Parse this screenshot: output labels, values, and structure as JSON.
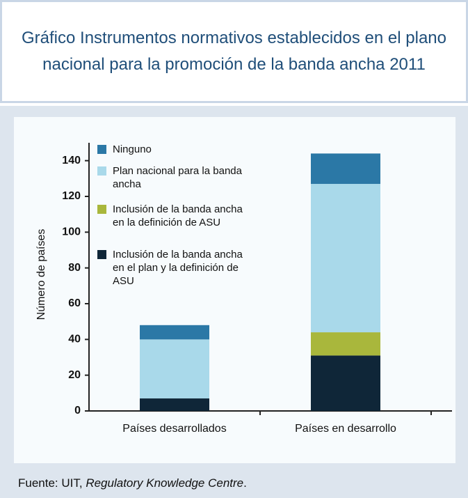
{
  "title": "Gráfico Instrumentos normativos establecidos en el plano nacional para la promoción de la banda ancha 2011",
  "chart_data": {
    "type": "stacked_bar",
    "y_label": "Número de países",
    "categories": [
      "Países desarrollados",
      "Países en desarrollo"
    ],
    "series": [
      {
        "name": "Inclusión de la banda ancha en el plan y la definición de ASU",
        "color": "#0f2638",
        "values": [
          7,
          31
        ]
      },
      {
        "name": "Inclusión de la banda ancha en la definición de ASU",
        "color": "#a9b73c",
        "values": [
          0,
          13
        ]
      },
      {
        "name": "Plan nacional para la banda ancha",
        "color": "#a9d9ea",
        "values": [
          33,
          83
        ]
      },
      {
        "name": "Ninguno",
        "color": "#2b78a6",
        "values": [
          8,
          17
        ]
      }
    ],
    "ylim": [
      0,
      150
    ],
    "yticks": [
      0,
      20,
      40,
      60,
      80,
      100,
      120,
      140
    ]
  },
  "source": {
    "prefix": "Fuente:  UIT, ",
    "italic": "Regulatory Knowledge Centre",
    "suffix": "."
  }
}
